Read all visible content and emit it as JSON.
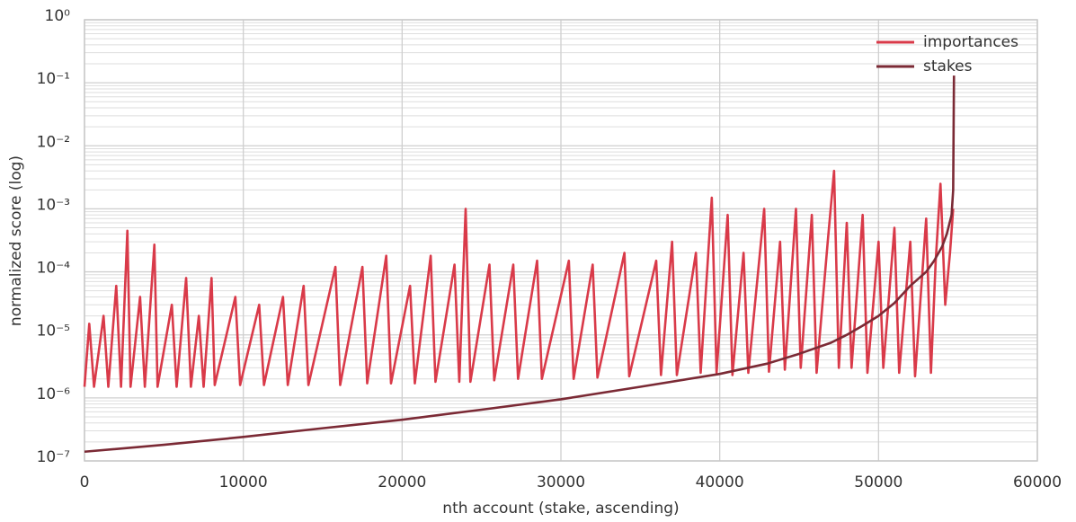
{
  "chart_data": {
    "type": "line",
    "xlabel": "nth account (stake, ascending)",
    "ylabel": "normalized score (log)",
    "log_y": true,
    "grid": true,
    "minor_grid": true,
    "legend": "upper right",
    "xlim": [
      0,
      60000
    ],
    "xticks": [
      0,
      10000,
      20000,
      30000,
      40000,
      50000,
      60000
    ],
    "ylim": [
      1e-07,
      1
    ],
    "yticks": [
      {
        "value": 1e-07,
        "label": "10⁻⁷"
      },
      {
        "value": 1e-06,
        "label": "10⁻⁶"
      },
      {
        "value": 1e-05,
        "label": "10⁻⁵"
      },
      {
        "value": 0.0001,
        "label": "10⁻⁴"
      },
      {
        "value": 0.001,
        "label": "10⁻³"
      },
      {
        "value": 0.01,
        "label": "10⁻²"
      },
      {
        "value": 0.1,
        "label": "10⁻¹"
      },
      {
        "value": 1,
        "label": "10⁰"
      }
    ],
    "series": [
      {
        "name": "importances",
        "color": "#d93a49",
        "x": [
          0,
          300,
          600,
          1200,
          1500,
          2000,
          2300,
          2700,
          2900,
          3500,
          3800,
          4400,
          4600,
          5500,
          5800,
          6400,
          6700,
          7200,
          7500,
          8000,
          8200,
          9500,
          9800,
          11000,
          11300,
          12500,
          12800,
          13800,
          14100,
          15800,
          16100,
          17500,
          17800,
          19000,
          19300,
          20500,
          20800,
          21800,
          22100,
          23300,
          23600,
          24000,
          24300,
          25500,
          25800,
          27000,
          27300,
          28500,
          28800,
          30500,
          30800,
          32000,
          32300,
          34000,
          34300,
          36000,
          36300,
          37000,
          37300,
          38500,
          38800,
          39500,
          39800,
          40500,
          40800,
          41500,
          41800,
          42800,
          43100,
          43800,
          44100,
          44800,
          45100,
          45800,
          46100,
          46800,
          47200,
          47500,
          48000,
          48300,
          49000,
          49300,
          50000,
          50300,
          51000,
          51300,
          52000,
          52300,
          53000,
          53300,
          53600,
          53900,
          54200,
          54500,
          54700
        ],
        "values": [
          1.5e-06,
          1.5e-05,
          1.5e-06,
          2e-05,
          1.5e-06,
          6e-05,
          1.5e-06,
          0.00045,
          1.5e-06,
          4e-05,
          1.5e-06,
          0.00027,
          1.5e-06,
          3e-05,
          1.5e-06,
          8e-05,
          1.5e-06,
          2e-05,
          1.5e-06,
          8e-05,
          1.6e-06,
          4e-05,
          1.6e-06,
          3e-05,
          1.6e-06,
          4e-05,
          1.6e-06,
          6e-05,
          1.6e-06,
          0.00012,
          1.6e-06,
          0.00012,
          1.7e-06,
          0.00018,
          1.7e-06,
          6e-05,
          1.7e-06,
          0.00018,
          1.8e-06,
          0.00013,
          1.8e-06,
          0.001,
          1.8e-06,
          0.00013,
          1.9e-06,
          0.00013,
          2e-06,
          0.00015,
          2e-06,
          0.00015,
          2e-06,
          0.00013,
          2.1e-06,
          0.0002,
          2.2e-06,
          0.00015,
          2.3e-06,
          0.0003,
          2.3e-06,
          0.0002,
          2.5e-06,
          0.0015,
          2.5e-06,
          0.0008,
          2.3e-06,
          0.0002,
          2.5e-06,
          0.001,
          2.6e-06,
          0.0003,
          2.8e-06,
          0.001,
          3e-06,
          0.0008,
          2.5e-06,
          0.0003,
          0.004,
          3e-06,
          0.0006,
          3e-06,
          0.0008,
          2.5e-06,
          0.0003,
          3e-06,
          0.0005,
          2.5e-06,
          0.0003,
          2.2e-06,
          0.0007,
          2.5e-06,
          0.00015,
          0.0025,
          3e-05,
          0.0002,
          0.001
        ]
      },
      {
        "name": "stakes",
        "color": "#7b2a35",
        "x": [
          0,
          5000,
          10000,
          15000,
          20000,
          25000,
          30000,
          35000,
          40000,
          43000,
          45000,
          47000,
          48000,
          49000,
          50000,
          51000,
          52000,
          53000,
          53500,
          54000,
          54300,
          54600,
          54700,
          54750
        ],
        "values": [
          1.4e-07,
          1.8e-07,
          2.4e-07,
          3.3e-07,
          4.5e-07,
          6.5e-07,
          9.5e-07,
          1.5e-06,
          2.4e-06,
          3.5e-06,
          5e-06,
          7.5e-06,
          1e-05,
          1.4e-05,
          2e-05,
          3.2e-05,
          6e-05,
          0.0001,
          0.00015,
          0.00025,
          0.0004,
          0.0008,
          0.002,
          0.13
        ]
      }
    ]
  }
}
